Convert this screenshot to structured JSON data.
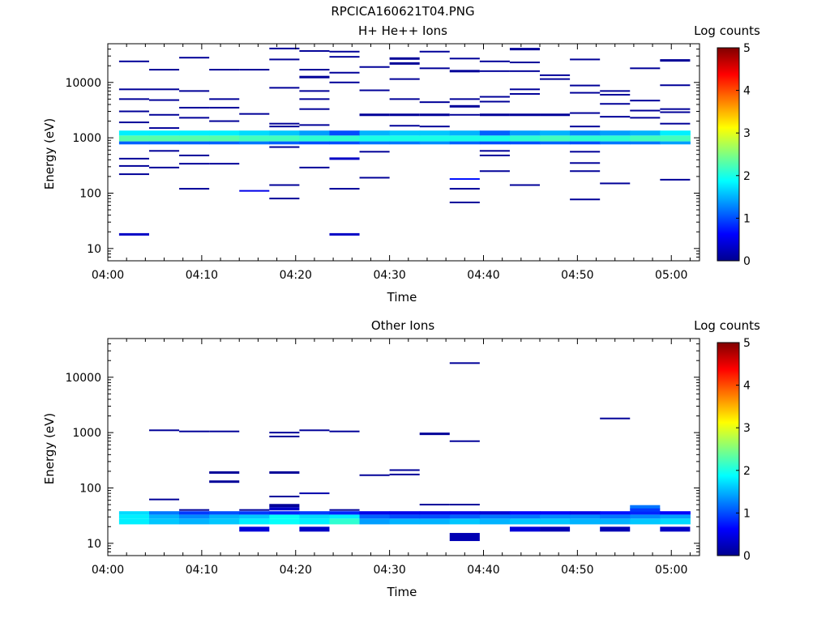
{
  "figure_title": "RPCICA160621T04.PNG",
  "colorscale": {
    "label": "Log counts",
    "ticks": [
      "5",
      "4",
      "3",
      "2",
      "1",
      "0"
    ],
    "stops": [
      "#00008f",
      "#0000ff",
      "#0080ff",
      "#00ffff",
      "#80ff80",
      "#ffff00",
      "#ff8000",
      "#ff0000",
      "#800000"
    ]
  },
  "chart_data": [
    {
      "type": "heatmap",
      "title": "H+ He++ Ions",
      "xlabel": "Time",
      "ylabel": "Energy (eV)",
      "xlim": [
        "04:00",
        "05:03"
      ],
      "ylim": [
        6,
        50000
      ],
      "yscale": "log",
      "zlim": [
        0,
        5
      ],
      "x_ticks": [
        "04:00",
        "04:10",
        "04:20",
        "04:30",
        "04:40",
        "04:50",
        "05:00"
      ],
      "y_ticks": [
        "10",
        "100",
        "1000",
        "10000"
      ],
      "sweep_starts_min": [
        1.2,
        4.4,
        7.6,
        10.8,
        14.0,
        17.2,
        20.4,
        23.6,
        26.8,
        30.0,
        33.2,
        36.4,
        39.6,
        42.8,
        46.0,
        49.2,
        52.4,
        55.6,
        58.8
      ],
      "sweep_width_min": 3.2,
      "rows": [
        {
          "name": "band-main",
          "energy_lo": 860,
          "energy_hi": 1100,
          "values": [
            2.3,
            2.3,
            2.3,
            2.3,
            2.2,
            2.2,
            2.1,
            2.1,
            2.0,
            2.0,
            2.0,
            2.0,
            2.0,
            2.1,
            2.2,
            2.1,
            2.1,
            2.2,
            2.2
          ]
        },
        {
          "name": "band-upper",
          "energy_lo": 1100,
          "energy_hi": 1350,
          "values": [
            1.8,
            1.8,
            1.8,
            1.8,
            1.7,
            1.6,
            1.4,
            1.0,
            1.5,
            1.6,
            1.6,
            1.5,
            1.1,
            1.4,
            1.5,
            1.3,
            1.4,
            1.5,
            1.8
          ]
        },
        {
          "name": "band-lower",
          "energy_lo": 760,
          "energy_hi": 860,
          "values": [
            1.1,
            1.1,
            1.1,
            1.1,
            1.2,
            1.1,
            1.0,
            1.0,
            1.2,
            1.2,
            1.3,
            1.1,
            1.0,
            1.0,
            1.1,
            1.0,
            1.2,
            1.2,
            1.4
          ]
        }
      ],
      "sparse": [
        {
          "col": 0,
          "energy": 18,
          "height": 3,
          "value": 0.3
        },
        {
          "col": 7,
          "energy": 18,
          "height": 3,
          "value": 0.3
        },
        {
          "col": 0,
          "energy": 24000
        },
        {
          "col": 0,
          "energy": 7500
        },
        {
          "col": 0,
          "energy": 5000
        },
        {
          "col": 0,
          "energy": 3000
        },
        {
          "col": 0,
          "energy": 1900
        },
        {
          "col": 0,
          "energy": 420
        },
        {
          "col": 0,
          "energy": 310
        },
        {
          "col": 0,
          "energy": 220
        },
        {
          "col": 1,
          "energy": 17000
        },
        {
          "col": 1,
          "energy": 7500
        },
        {
          "col": 1,
          "energy": 4800
        },
        {
          "col": 1,
          "energy": 2600
        },
        {
          "col": 1,
          "energy": 1500
        },
        {
          "col": 1,
          "energy": 580
        },
        {
          "col": 1,
          "energy": 290
        },
        {
          "col": 2,
          "energy": 28000
        },
        {
          "col": 2,
          "energy": 7000
        },
        {
          "col": 2,
          "energy": 3500
        },
        {
          "col": 2,
          "energy": 2300
        },
        {
          "col": 2,
          "energy": 480
        },
        {
          "col": 2,
          "energy": 340
        },
        {
          "col": 2,
          "energy": 120
        },
        {
          "col": 3,
          "energy": 17000
        },
        {
          "col": 3,
          "energy": 5000
        },
        {
          "col": 3,
          "energy": 3500
        },
        {
          "col": 3,
          "energy": 2000
        },
        {
          "col": 3,
          "energy": 340
        },
        {
          "col": 4,
          "energy": 17000
        },
        {
          "col": 4,
          "energy": 2700
        },
        {
          "col": 4,
          "energy": 110,
          "value": 0.5
        },
        {
          "col": 5,
          "energy": 41000
        },
        {
          "col": 5,
          "energy": 26000
        },
        {
          "col": 5,
          "energy": 8000
        },
        {
          "col": 5,
          "energy": 1800
        },
        {
          "col": 5,
          "energy": 1600
        },
        {
          "col": 5,
          "energy": 680
        },
        {
          "col": 5,
          "energy": 140
        },
        {
          "col": 5,
          "energy": 80
        },
        {
          "col": 6,
          "energy": 37000
        },
        {
          "col": 6,
          "energy": 17000
        },
        {
          "col": 6,
          "energy": 12500,
          "height": 3
        },
        {
          "col": 6,
          "energy": 7000
        },
        {
          "col": 6,
          "energy": 5000
        },
        {
          "col": 6,
          "energy": 3300
        },
        {
          "col": 6,
          "energy": 1700
        },
        {
          "col": 6,
          "energy": 290
        },
        {
          "col": 7,
          "energy": 36000
        },
        {
          "col": 7,
          "energy": 29000
        },
        {
          "col": 7,
          "energy": 15000
        },
        {
          "col": 7,
          "energy": 10000
        },
        {
          "col": 7,
          "energy": 420,
          "height": 3,
          "value": 0.3
        },
        {
          "col": 7,
          "energy": 120
        },
        {
          "col": 8,
          "energy": 19000
        },
        {
          "col": 8,
          "energy": 7200
        },
        {
          "col": 8,
          "energy": 2600,
          "height": 3
        },
        {
          "col": 8,
          "energy": 560
        },
        {
          "col": 8,
          "energy": 190
        },
        {
          "col": 9,
          "energy": 27000,
          "height": 3
        },
        {
          "col": 9,
          "energy": 22000,
          "height": 3
        },
        {
          "col": 9,
          "energy": 11500
        },
        {
          "col": 9,
          "energy": 5000
        },
        {
          "col": 9,
          "energy": 2600,
          "height": 3
        },
        {
          "col": 9,
          "energy": 1650
        },
        {
          "col": 10,
          "energy": 36000
        },
        {
          "col": 10,
          "energy": 18000
        },
        {
          "col": 10,
          "energy": 4400
        },
        {
          "col": 10,
          "energy": 2600,
          "height": 3
        },
        {
          "col": 10,
          "energy": 1600
        },
        {
          "col": 11,
          "energy": 27000
        },
        {
          "col": 11,
          "energy": 16000,
          "height": 3
        },
        {
          "col": 11,
          "energy": 5000
        },
        {
          "col": 11,
          "energy": 3700,
          "height": 3
        },
        {
          "col": 11,
          "energy": 2600
        },
        {
          "col": 11,
          "energy": 180,
          "value": 0.7
        },
        {
          "col": 11,
          "energy": 120
        },
        {
          "col": 11,
          "energy": 68
        },
        {
          "col": 12,
          "energy": 24000
        },
        {
          "col": 12,
          "energy": 16000
        },
        {
          "col": 12,
          "energy": 5500
        },
        {
          "col": 12,
          "energy": 4500
        },
        {
          "col": 12,
          "energy": 2600,
          "height": 3
        },
        {
          "col": 12,
          "energy": 580
        },
        {
          "col": 12,
          "energy": 480
        },
        {
          "col": 12,
          "energy": 250
        },
        {
          "col": 13,
          "energy": 40000,
          "height": 3
        },
        {
          "col": 13,
          "energy": 23000
        },
        {
          "col": 13,
          "energy": 16000
        },
        {
          "col": 13,
          "energy": 7500
        },
        {
          "col": 13,
          "energy": 6200
        },
        {
          "col": 13,
          "energy": 2600,
          "height": 3
        },
        {
          "col": 13,
          "energy": 140
        },
        {
          "col": 14,
          "energy": 13500
        },
        {
          "col": 14,
          "energy": 11500
        },
        {
          "col": 14,
          "energy": 2600,
          "height": 3
        },
        {
          "col": 15,
          "energy": 26000
        },
        {
          "col": 15,
          "energy": 8800
        },
        {
          "col": 15,
          "energy": 6500
        },
        {
          "col": 15,
          "energy": 2800
        },
        {
          "col": 15,
          "energy": 1600
        },
        {
          "col": 15,
          "energy": 560
        },
        {
          "col": 15,
          "energy": 350
        },
        {
          "col": 15,
          "energy": 250
        },
        {
          "col": 15,
          "energy": 77
        },
        {
          "col": 16,
          "energy": 7000
        },
        {
          "col": 16,
          "energy": 6000
        },
        {
          "col": 16,
          "energy": 4100
        },
        {
          "col": 16,
          "energy": 2400
        },
        {
          "col": 16,
          "energy": 150
        },
        {
          "col": 17,
          "energy": 18000
        },
        {
          "col": 17,
          "energy": 4700
        },
        {
          "col": 17,
          "energy": 3100
        },
        {
          "col": 17,
          "energy": 2300
        },
        {
          "col": 18,
          "energy": 25000,
          "height": 3
        },
        {
          "col": 18,
          "energy": 8900
        },
        {
          "col": 18,
          "energy": 3300
        },
        {
          "col": 18,
          "energy": 2900
        },
        {
          "col": 18,
          "energy": 1800
        },
        {
          "col": 18,
          "energy": 175
        }
      ]
    },
    {
      "type": "heatmap",
      "title": "Other Ions",
      "xlabel": "Time",
      "ylabel": "Energy (eV)",
      "xlim": [
        "04:00",
        "05:03"
      ],
      "ylim": [
        6,
        50000
      ],
      "yscale": "log",
      "zlim": [
        0,
        5
      ],
      "x_ticks": [
        "04:00",
        "04:10",
        "04:20",
        "04:30",
        "04:40",
        "04:50",
        "05:00"
      ],
      "y_ticks": [
        "10",
        "100",
        "1000",
        "10000"
      ],
      "sweep_starts_min": [
        1.2,
        4.4,
        7.6,
        10.8,
        14.0,
        17.2,
        20.4,
        23.6,
        26.8,
        30.0,
        33.2,
        36.4,
        39.6,
        42.8,
        46.0,
        49.2,
        52.4,
        55.6,
        58.8
      ],
      "sweep_width_min": 3.2,
      "rows": [
        {
          "name": "band-low",
          "energy_lo": 22,
          "energy_hi": 28,
          "values": [
            1.8,
            1.6,
            1.5,
            1.6,
            1.8,
            1.9,
            1.8,
            2.1,
            1.4,
            1.5,
            1.5,
            1.6,
            1.5,
            1.6,
            1.6,
            1.5,
            1.5,
            1.6,
            1.7
          ]
        },
        {
          "name": "band-mid",
          "energy_lo": 28,
          "energy_hi": 33,
          "values": [
            1.8,
            1.5,
            1.3,
            1.5,
            1.6,
            1.9,
            1.7,
            1.8,
            1.1,
            1.0,
            1.0,
            1.1,
            1.2,
            1.2,
            1.3,
            1.3,
            1.2,
            1.3,
            1.4
          ]
        },
        {
          "name": "band-top",
          "energy_lo": 33,
          "energy_hi": 38,
          "values": [
            1.7,
            1.2,
            0.9,
            1.0,
            0.9,
            0.8,
            0.9,
            0.8,
            0.5,
            0.5,
            0.5,
            0.5,
            0.4,
            0.6,
            0.6,
            0.5,
            0.7,
            0.8,
            0.6
          ]
        }
      ],
      "sparse": [
        {
          "col": 1,
          "energy": 1100
        },
        {
          "col": 1,
          "energy": 62
        },
        {
          "col": 2,
          "energy": 1050
        },
        {
          "col": 2,
          "energy": 40
        },
        {
          "col": 3,
          "energy": 1050
        },
        {
          "col": 3,
          "energy": 190,
          "height": 3
        },
        {
          "col": 3,
          "energy": 130,
          "height": 3
        },
        {
          "col": 4,
          "energy": 18,
          "height": 6,
          "value": 0.4
        },
        {
          "col": 4,
          "energy": 40
        },
        {
          "col": 5,
          "energy": 1000
        },
        {
          "col": 5,
          "energy": 850
        },
        {
          "col": 5,
          "energy": 190,
          "height": 3
        },
        {
          "col": 5,
          "energy": 70
        },
        {
          "col": 5,
          "energy": 48,
          "height": 4
        },
        {
          "col": 5,
          "energy": 42,
          "height": 4,
          "value": 0.3
        },
        {
          "col": 6,
          "energy": 1100
        },
        {
          "col": 6,
          "energy": 80,
          "value": 0.15
        },
        {
          "col": 6,
          "energy": 18,
          "height": 6,
          "value": 0.3
        },
        {
          "col": 7,
          "energy": 1050
        },
        {
          "col": 7,
          "energy": 40
        },
        {
          "col": 8,
          "energy": 170
        },
        {
          "col": 9,
          "energy": 210
        },
        {
          "col": 9,
          "energy": 175
        },
        {
          "col": 10,
          "energy": 50
        },
        {
          "col": 10,
          "energy": 950,
          "height": 3
        },
        {
          "col": 11,
          "energy": 18000
        },
        {
          "col": 11,
          "energy": 700
        },
        {
          "col": 11,
          "energy": 50
        },
        {
          "col": 11,
          "energy": 13,
          "height": 10,
          "value": 0.2
        },
        {
          "col": 13,
          "energy": 18,
          "height": 6,
          "value": 0.4
        },
        {
          "col": 14,
          "energy": 18,
          "height": 6,
          "value": 0.2
        },
        {
          "col": 16,
          "energy": 1800
        },
        {
          "col": 16,
          "energy": 18,
          "height": 6,
          "value": 0.2
        },
        {
          "col": 17,
          "energy": 45,
          "height": 5,
          "value": 1.2
        },
        {
          "col": 17,
          "energy": 40,
          "height": 4,
          "value": 0.9
        },
        {
          "col": 18,
          "energy": 18,
          "height": 6,
          "value": 0.3
        }
      ]
    }
  ]
}
